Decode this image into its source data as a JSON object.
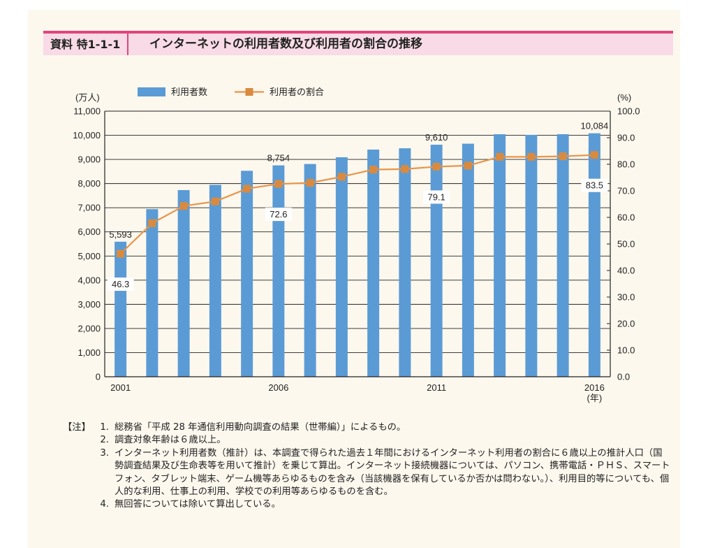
{
  "header": {
    "label": "資料 特1-1-1",
    "title": "インターネットの利用者数及び利用者の割合の推移"
  },
  "chart_data": {
    "type": "bar",
    "categories": [
      "2001",
      "2002",
      "2003",
      "2004",
      "2005",
      "2006",
      "2007",
      "2008",
      "2009",
      "2010",
      "2011",
      "2012",
      "2013",
      "2014",
      "2015",
      "2016"
    ],
    "x_tick_labels": [
      {
        "category": "2001",
        "label": "2001"
      },
      {
        "category": "2006",
        "label": "2006"
      },
      {
        "category": "2011",
        "label": "2011"
      },
      {
        "category": "2016",
        "label": "2016"
      }
    ],
    "x_unit": "(年)",
    "series": [
      {
        "name": "利用者数",
        "type": "bar",
        "axis": "left",
        "color": "#5b9bd5",
        "values": [
          5593,
          6942,
          7730,
          7948,
          8529,
          8754,
          8811,
          9091,
          9408,
          9462,
          9610,
          9652,
          10044,
          10018,
          10046,
          10084
        ]
      },
      {
        "name": "利用者の割合",
        "type": "line",
        "axis": "right",
        "color": "#e8954a",
        "marker_color": "#d98a3e",
        "values": [
          46.3,
          57.8,
          64.3,
          66.0,
          70.8,
          72.6,
          73.0,
          75.3,
          78.0,
          78.2,
          79.1,
          79.5,
          82.8,
          82.8,
          83.0,
          83.5
        ]
      }
    ],
    "y_left": {
      "label": "(万人)",
      "min": 0,
      "max": 11000,
      "step": 1000,
      "ticks": [
        "0",
        "1,000",
        "2,000",
        "3,000",
        "4,000",
        "5,000",
        "6,000",
        "7,000",
        "8,000",
        "9,000",
        "10,000",
        "11,000"
      ]
    },
    "y_right": {
      "label": "(%)",
      "min": 0,
      "max": 100,
      "step": 10,
      "ticks": [
        "0.0",
        "10.0",
        "20.0",
        "30.0",
        "40.0",
        "50.0",
        "60.0",
        "70.0",
        "80.0",
        "90.0",
        "100.0"
      ]
    },
    "data_labels": [
      {
        "series": "利用者数",
        "category": "2001",
        "text": "5,593"
      },
      {
        "series": "利用者数",
        "category": "2006",
        "text": "8,754"
      },
      {
        "series": "利用者数",
        "category": "2011",
        "text": "9,610"
      },
      {
        "series": "利用者数",
        "category": "2016",
        "text": "10,084"
      },
      {
        "series": "利用者の割合",
        "category": "2001",
        "text": "46.3"
      },
      {
        "series": "利用者の割合",
        "category": "2006",
        "text": "72.6"
      },
      {
        "series": "利用者の割合",
        "category": "2011",
        "text": "79.1"
      },
      {
        "series": "利用者の割合",
        "category": "2016",
        "text": "83.5"
      }
    ],
    "legend_position": "top-left",
    "grid": "horizontal"
  },
  "notes": {
    "heading": "【注】",
    "items": [
      {
        "num": "1.",
        "text": "総務省「平成 28 年通信利用動向調査の結果（世帯編）」によるもの。"
      },
      {
        "num": "2.",
        "text": "調査対象年齢は６歳以上。"
      },
      {
        "num": "3.",
        "text": "インターネット利用者数（推計）は、本調査で得られた過去１年間におけるインターネット利用者の割合に６歳以上の推計人口（国勢調査結果及び生命表等を用いて推計）を乗じて算出。インターネット接続機器については、パソコン、携帯電話・ＰＨＳ、スマートフォン、タブレット端末、ゲーム機等あらゆるものを含み（当該機器を保有しているか否かは問わない。）、利用目的等についても、個人的な利用、仕事上の利用、学校での利用等あらゆるものを含む。"
      },
      {
        "num": "4.",
        "text": "無回答については除いて算出している。"
      }
    ]
  }
}
